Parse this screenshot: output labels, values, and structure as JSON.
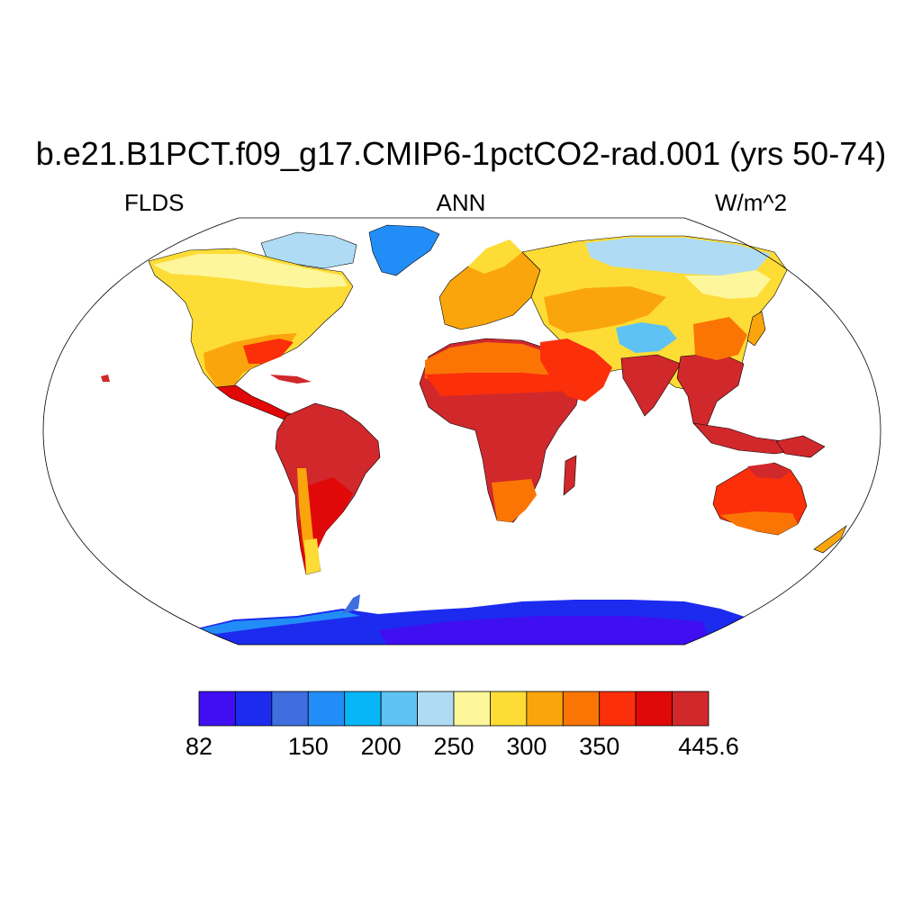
{
  "title": "b.e21.B1PCT.f09_g17.CMIP6-1pctCO2-rad.001 (yrs 50-74)",
  "subtitle": {
    "left": "FLDS",
    "center": "ANN",
    "right": "W/m^2"
  },
  "colorbar": {
    "colors": [
      "#3f0ff2",
      "#1c2bee",
      "#3e6ee0",
      "#228df7",
      "#06b6f6",
      "#5ec3f2",
      "#afdcf4",
      "#fef69a",
      "#fddc36",
      "#fba50c",
      "#fb7505",
      "#fb2f0a",
      "#e00808",
      "#d1282c"
    ],
    "tick_labels": [
      {
        "text": "82",
        "index": 0
      },
      {
        "text": "150",
        "index": 3
      },
      {
        "text": "200",
        "index": 5
      },
      {
        "text": "250",
        "index": 7
      },
      {
        "text": "300",
        "index": 9
      },
      {
        "text": "350",
        "index": 11
      },
      {
        "text": "445.6",
        "index": 14
      }
    ]
  },
  "map": {
    "projection": "Robinson",
    "ocean_color": "#ffffff"
  }
}
